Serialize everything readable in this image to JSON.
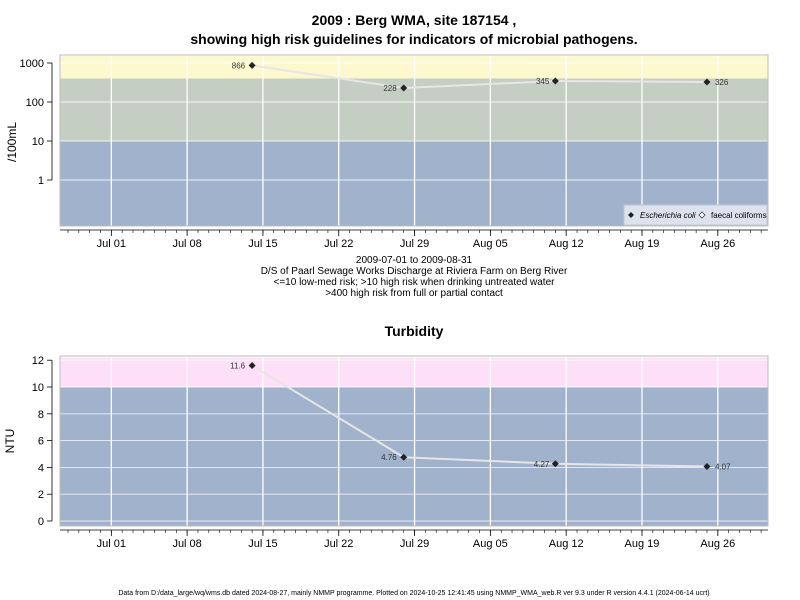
{
  "chart_data": [
    {
      "type": "line",
      "title": "2009 : Berg WMA, site 187154 ,",
      "subtitle": "showing high risk guidelines for indicators of microbial pathogens.",
      "ylabel": "/100mL",
      "yscale": "log",
      "ylim": [
        0.04,
        1500
      ],
      "yticks": [
        1,
        10,
        100,
        1000
      ],
      "ytick_labels": [
        "1",
        "10",
        "100",
        "1000"
      ],
      "x_dates": [
        "Jul 01",
        "Jul 08",
        "Jul 15",
        "Jul 22",
        "Jul 29",
        "Aug 05",
        "Aug 12",
        "Aug 19",
        "Aug 26"
      ],
      "bands": [
        {
          "from": 0.04,
          "to": 10,
          "color": "#a0b2cc"
        },
        {
          "from": 10,
          "to": 400,
          "color": "#c4cec2"
        },
        {
          "from": 400,
          "to": 1500,
          "color": "#fef8cf"
        }
      ],
      "series": [
        {
          "name": "Escherichia coli",
          "marker": "filled-diamond",
          "points": [
            {
              "x": "2009-07-14",
              "y": 866,
              "label": "866"
            },
            {
              "x": "2009-07-28",
              "y": 228,
              "label": "228"
            },
            {
              "x": "2009-08-11",
              "y": 345,
              "label": "345"
            },
            {
              "x": "2009-08-25",
              "y": 326,
              "label": "326"
            }
          ]
        },
        {
          "name": "faecal coliforms",
          "marker": "open-diamond",
          "points": []
        }
      ],
      "legend_position": "bottom-right",
      "caption_lines": [
        "2009-07-01 to 2009-08-31",
        "D/S of Paarl Sewage Works Discharge at Riviera Farm on Berg River",
        "<=10 low-med risk; >10 high risk when drinking untreated water",
        ">400 high risk from full or partial contact"
      ]
    },
    {
      "type": "line",
      "title": "Turbidity",
      "ylabel": "NTU",
      "ylim": [
        -0.4,
        12.2
      ],
      "yticks": [
        0,
        2,
        4,
        6,
        8,
        10,
        12
      ],
      "ytick_labels": [
        "0",
        "2",
        "4",
        "6",
        "8",
        "10",
        "12"
      ],
      "x_dates": [
        "Jul 01",
        "Jul 08",
        "Jul 15",
        "Jul 22",
        "Jul 29",
        "Aug 05",
        "Aug 12",
        "Aug 19",
        "Aug 26"
      ],
      "bands": [
        {
          "from": -0.4,
          "to": 10,
          "color": "#a0b2cc"
        },
        {
          "from": 10,
          "to": 12.2,
          "color": "#fde0f7"
        }
      ],
      "series": [
        {
          "marker": "filled-diamond",
          "points": [
            {
              "x": "2009-07-14",
              "y": 11.6,
              "label": "11.6"
            },
            {
              "x": "2009-07-28",
              "y": 4.76,
              "label": "4.76"
            },
            {
              "x": "2009-08-11",
              "y": 4.27,
              "label": "4.27"
            },
            {
              "x": "2009-08-25",
              "y": 4.07,
              "label": "4.07"
            }
          ]
        }
      ]
    }
  ],
  "footer": "Data from D:/data_large/wq/wms.db dated 2024-08-27, mainly NMMP programme. Plotted on 2024-10-25 12:41:45 using NMMP_WMA_web.R ver 9.3 under R version 4.4.1 (2024-06-14 ucrt)"
}
